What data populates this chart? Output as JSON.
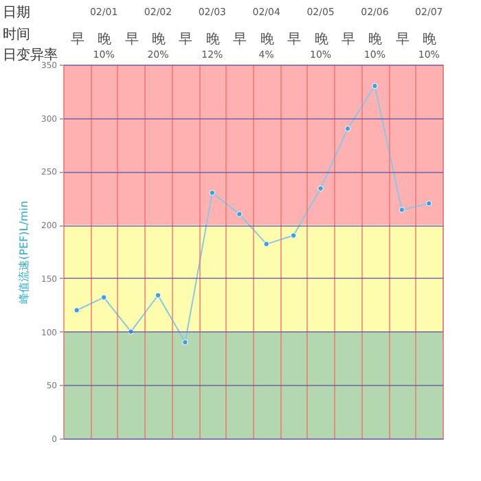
{
  "chart_data": {
    "type": "line",
    "ylabel": "峰值流速(PEF)L/min",
    "categories": [
      "早",
      "晚",
      "早",
      "晚",
      "早",
      "晚",
      "早",
      "晚",
      "早",
      "晚",
      "早",
      "晚",
      "早",
      "晚"
    ],
    "series": [
      {
        "color": "#87c8e8",
        "values": [
          120,
          132,
          100,
          134,
          90,
          230,
          210,
          182,
          190,
          234,
          290,
          330,
          214,
          220
        ]
      }
    ],
    "marker": "circle",
    "ylim": [
      0,
      350
    ],
    "yticks": [
      0,
      50,
      100,
      150,
      200,
      250,
      300,
      350
    ],
    "grid": true,
    "bands": [
      {
        "axis": "y",
        "from": 0,
        "to": 100,
        "color": "#b3d8b0"
      },
      {
        "axis": "y",
        "from": 100,
        "to": 200,
        "color": "#fefdae"
      },
      {
        "axis": "y",
        "from": 200,
        "to": 350,
        "color": "#ffb1b1"
      }
    ],
    "annotations": [
      "日期",
      "时间",
      "日变异率",
      "02/01",
      "02/02",
      "02/03",
      "02/04",
      "02/05",
      "02/06",
      "02/07",
      "10%",
      "20%",
      "12%",
      "4%",
      "10%",
      "10%",
      "10%"
    ]
  }
}
